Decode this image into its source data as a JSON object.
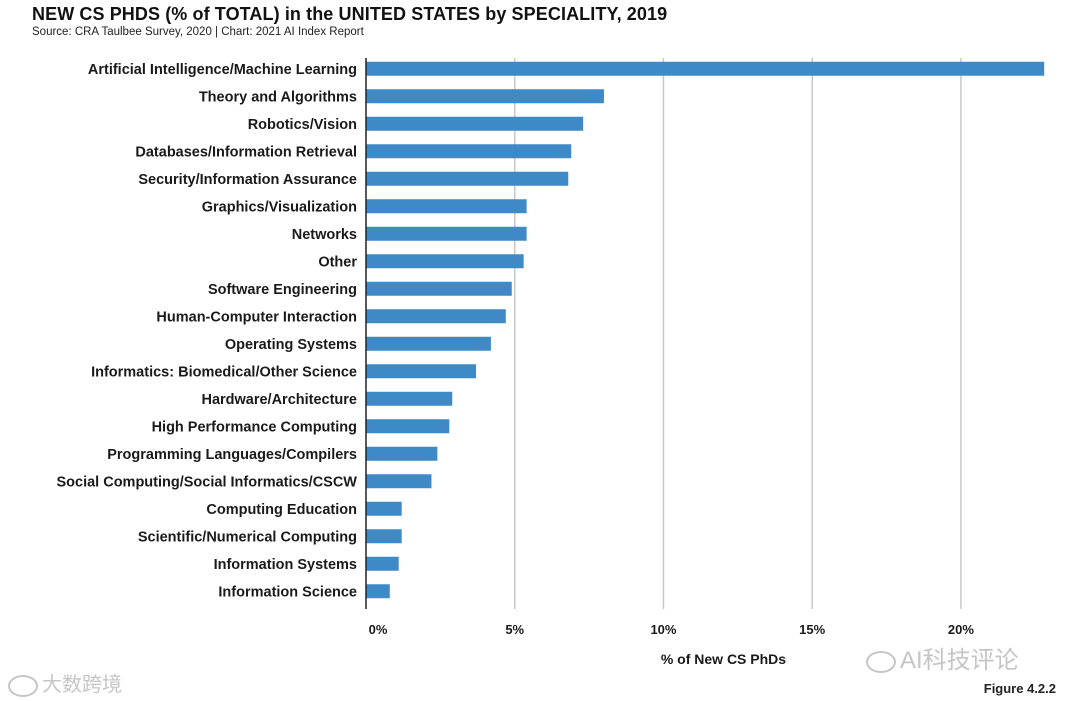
{
  "header": {
    "title": "NEW CS PHDS (% of TOTAL) in the UNITED STATES by SPECIALITY, 2019",
    "source": "Source: CRA Taulbee Survey, 2020 | Chart: 2021 AI Index Report"
  },
  "footer": {
    "figure": "Figure 4.2.2"
  },
  "watermarks": {
    "left": "大数跨境",
    "right": "AI科技评论"
  },
  "colors": {
    "bar": "#3f8ac6",
    "grid": "#c8c8c8",
    "axis": "#222222"
  },
  "chart_data": {
    "type": "bar",
    "orientation": "horizontal",
    "title": "NEW CS PHDS (% of TOTAL) in the UNITED STATES by SPECIALITY, 2019",
    "xlabel": "% of New CS PhDs",
    "ylabel": "",
    "xlim": [
      0,
      23.6
    ],
    "xticks": [
      0,
      5,
      10,
      15,
      20
    ],
    "xtick_labels": [
      "0%",
      "5%",
      "10%",
      "15%",
      "20%"
    ],
    "grid": "vertical",
    "categories": [
      "Artificial Intelligence/Machine Learning",
      "Theory and Algorithms",
      "Robotics/Vision",
      "Databases/Information Retrieval",
      "Security/Information Assurance",
      "Graphics/Visualization",
      "Networks",
      "Other",
      "Software Engineering",
      "Human-Computer Interaction",
      "Operating Systems",
      "Informatics: Biomedical/Other Science",
      "Hardware/Architecture",
      "High Performance Computing",
      "Programming Languages/Compilers",
      "Social Computing/Social Informatics/CSCW",
      "Computing Education",
      "Scientific/Numerical Computing",
      "Information Systems",
      "Information Science"
    ],
    "values": [
      22.8,
      8.0,
      7.3,
      6.9,
      6.8,
      5.4,
      5.4,
      5.3,
      4.9,
      4.7,
      4.2,
      3.7,
      2.9,
      2.8,
      2.4,
      2.2,
      1.2,
      1.2,
      1.1,
      0.8
    ]
  }
}
